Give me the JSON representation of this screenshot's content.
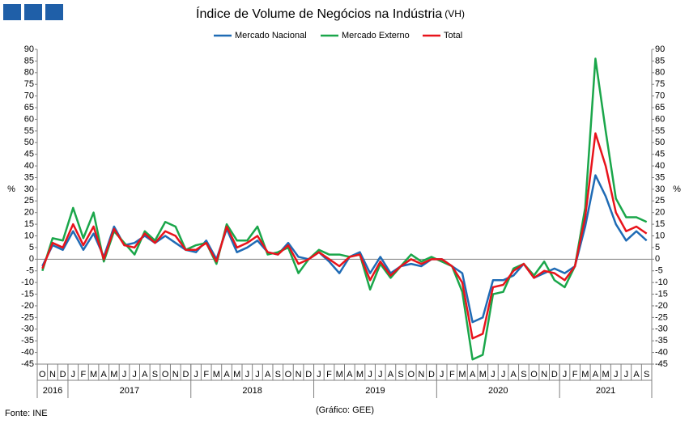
{
  "chart_data": {
    "type": "line",
    "title": "Índice de Volume de Negócios na Indústria",
    "subtitle": "(VH)",
    "y_label": "%",
    "source": "Fonte: INE",
    "credit": "(Gráfico: GEE)",
    "categories": [
      "O",
      "N",
      "D",
      "J",
      "F",
      "M",
      "A",
      "M",
      "J",
      "J",
      "A",
      "S",
      "O",
      "N",
      "D",
      "J",
      "F",
      "M",
      "A",
      "M",
      "J",
      "J",
      "A",
      "S",
      "O",
      "N",
      "D",
      "J",
      "F",
      "M",
      "A",
      "M",
      "J",
      "J",
      "A",
      "S",
      "O",
      "N",
      "D",
      "J",
      "F",
      "M",
      "A",
      "M",
      "J",
      "J",
      "A",
      "S",
      "O",
      "N",
      "D",
      "J",
      "F",
      "M",
      "A",
      "M",
      "J",
      "J",
      "A",
      "S"
    ],
    "year_groups": [
      {
        "label": "2016",
        "count": 3
      },
      {
        "label": "2017",
        "count": 12
      },
      {
        "label": "2018",
        "count": 12
      },
      {
        "label": "2019",
        "count": 12
      },
      {
        "label": "2020",
        "count": 12
      },
      {
        "label": "2021",
        "count": 9
      }
    ],
    "series": [
      {
        "name": "Mercado Nacional",
        "color": "#1f6bb5",
        "values": [
          -3,
          6,
          4,
          12,
          4,
          11,
          1,
          14,
          6,
          7,
          10,
          7,
          10,
          7,
          4,
          3,
          8,
          0,
          13,
          3,
          5,
          8,
          3,
          2,
          7,
          1,
          0,
          3,
          -1,
          -6,
          1,
          3,
          -6,
          1,
          -6,
          -3,
          -2,
          -3,
          0,
          0,
          -3,
          -6,
          -27,
          -25,
          -9,
          -9,
          -7,
          -2,
          -8,
          -6,
          -4,
          -6,
          -3,
          14,
          36,
          27,
          15,
          8,
          12,
          8
        ]
      },
      {
        "name": "Mercado Externo",
        "color": "#1aa64a",
        "values": [
          -5,
          9,
          8,
          22,
          9,
          20,
          -1,
          12,
          7,
          2,
          12,
          8,
          16,
          14,
          4,
          6,
          7,
          -2,
          15,
          8,
          8,
          14,
          2,
          3,
          5,
          -6,
          0,
          4,
          2,
          2,
          1,
          2,
          -13,
          -2,
          -8,
          -3,
          2,
          -1,
          1,
          -1,
          -3,
          -14,
          -43,
          -41,
          -15,
          -14,
          -4,
          -2,
          -7,
          -1,
          -9,
          -12,
          -3,
          22,
          86,
          55,
          26,
          18,
          18,
          16
        ]
      },
      {
        "name": "Total",
        "color": "#e8131b",
        "values": [
          -4,
          7,
          5,
          15,
          6,
          14,
          0,
          13,
          6,
          5,
          11,
          7,
          12,
          10,
          4,
          4,
          7,
          -1,
          14,
          5,
          7,
          10,
          3,
          2,
          6,
          -2,
          0,
          3,
          0,
          -3,
          1,
          2,
          -9,
          -1,
          -7,
          -3,
          0,
          -2,
          0,
          0,
          -3,
          -10,
          -34,
          -32,
          -12,
          -11,
          -5,
          -2,
          -8,
          -5,
          -6,
          -9,
          -3,
          18,
          54,
          40,
          20,
          12,
          14,
          11
        ]
      }
    ],
    "ylim": [
      -45,
      90
    ],
    "yticks": [
      -45,
      -40,
      -35,
      -30,
      -25,
      -20,
      -15,
      -10,
      -5,
      0,
      5,
      10,
      15,
      20,
      25,
      30,
      35,
      40,
      45,
      50,
      55,
      60,
      65,
      70,
      75,
      80,
      85,
      90
    ],
    "y2lim": [
      -45,
      90
    ],
    "y2ticks": [
      -45,
      -40,
      -35,
      -30,
      -25,
      -20,
      -15,
      -10,
      -5,
      0,
      5,
      10,
      15,
      20,
      25,
      30,
      35,
      40,
      45,
      50,
      55,
      60,
      65,
      70,
      75,
      80,
      85,
      90
    ],
    "legend": "top"
  }
}
